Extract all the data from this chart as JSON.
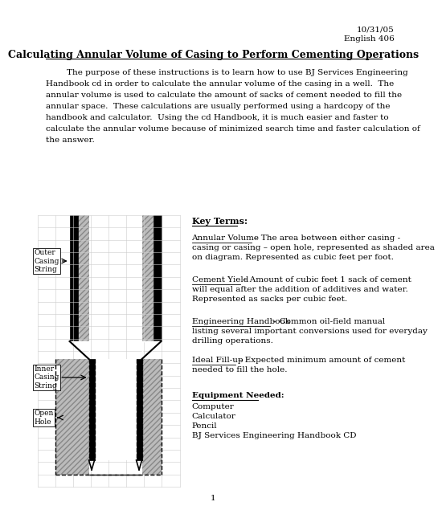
{
  "title": "Calculating Annular Volume of Casing to Perform Cementing Operations",
  "date_line1": "10/31/05",
  "date_line2": "English 406",
  "intro_lines": [
    "        The purpose of these instructions is to learn how to use BJ Services Engineering",
    "Handbook cd in order to calculate the annular volume of the casing in a well.  The",
    "annular volume is used to calculate the amount of sacks of cement needed to fill the",
    "annular space.  These calculations are usually performed using a hardcopy of the",
    "handbook and calculator.  Using the cd Handbook, it is much easier and faster to",
    "calculate the annular volume because of minimized search time and faster calculation of",
    "the answer."
  ],
  "key_terms_title": "Key Terms:",
  "annular_volume_term": "Annular Volume",
  "annular_volume_def1": " – The area between either casing -",
  "annular_volume_def2": "casing or casing – open hole, represented as shaded area",
  "annular_volume_def3": "on diagram. Represented as cubic feet per foot.",
  "cement_yield_term": "Cement Yield",
  "cement_yield_def1": " – Amount of cubic feet 1 sack of cement",
  "cement_yield_def2": "will equal after the addition of additives and water.",
  "cement_yield_def3": "Represented as sacks per cubic feet.",
  "eng_handbook_term": "Engineering Handbook",
  "eng_handbook_def1": " – Common oil-field manual",
  "eng_handbook_def2": "listing several important conversions used for everyday",
  "eng_handbook_def3": "drilling operations.",
  "ideal_fillup_term": "Ideal Fill-up",
  "ideal_fillup_def1": " – Expected minimum amount of cement",
  "ideal_fillup_def2": "needed to fill the hole.",
  "equipment_title": "Equipment Needed:",
  "equipment_items": [
    "Computer",
    "Calculator",
    "Pencil",
    "BJ Services Engineering Handbook CD"
  ],
  "label_outer": "Outer\nCasing\nString",
  "label_inner": "Inner\nCasing\nString",
  "label_open": "Open\nHole",
  "page_number": "1",
  "bg_color": "#ffffff",
  "text_color": "#000000",
  "font_size_body": 7.5,
  "font_size_title": 9.0,
  "font_size_small": 6.5
}
